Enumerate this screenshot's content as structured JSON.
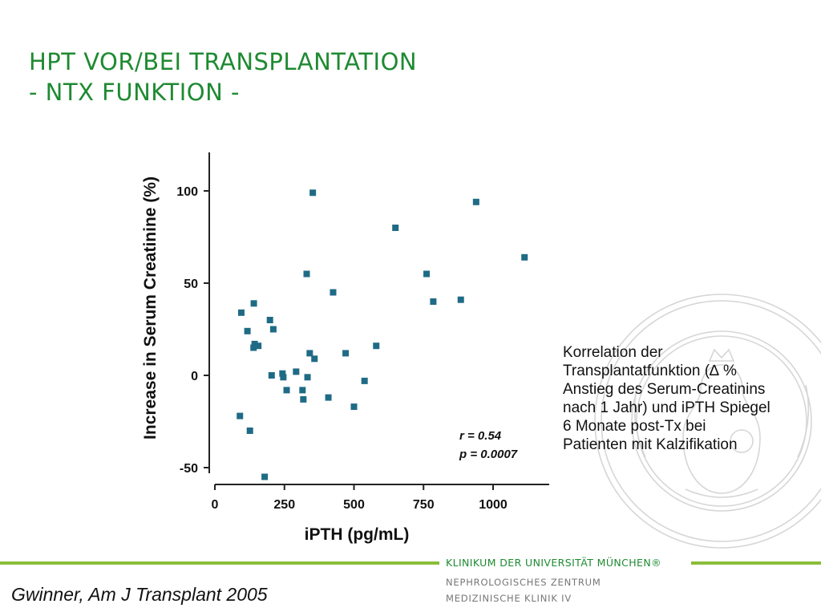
{
  "slide": {
    "title_lines": [
      "HPT VOR/BEI TRANSPLANTATION",
      "- NTX FUNKTION -"
    ],
    "caption_lines": [
      "Korrelation der",
      "Transplantatfunktion (∆ %",
      "Anstieg des Serum-Creatinins",
      "nach 1 Jahr) und iPTH Spiegel",
      "6 Monate post-Tx bei",
      "Patienten mit Kalzifikation"
    ],
    "citation": "Gwinner, Am J Transplant 2005",
    "clinic_name": "KLINIKUM DER UNIVERSITÄT MÜNCHEN®",
    "clinic_sub_lines": [
      "NEPHROLOGISCHES ZENTRUM",
      "MEDIZINISCHE KLINIK IV"
    ],
    "colors": {
      "title": "#1e8a32",
      "accent_rule": "#8bbd3a",
      "marker": "#1f6b86"
    }
  },
  "chart_data": {
    "type": "scatter",
    "title": "",
    "xlabel": "iPTH (pg/mL)",
    "ylabel": "Increase in Serum Creatinine (%)",
    "xlim": [
      -10,
      1210
    ],
    "ylim": [
      -62,
      120
    ],
    "xticks": [
      0,
      250,
      500,
      750,
      1000
    ],
    "yticks": [
      -50,
      0,
      50,
      100
    ],
    "grid": false,
    "legend": "none",
    "annotations": [
      "r = 0.54",
      "p = 0.0007"
    ],
    "series": [
      {
        "points": [
          [
            352,
            99
          ],
          [
            939,
            94
          ],
          [
            649,
            80
          ],
          [
            1113,
            64
          ],
          [
            330,
            55
          ],
          [
            761,
            55
          ],
          [
            425,
            45
          ],
          [
            785,
            40
          ],
          [
            884,
            41
          ],
          [
            95,
            34
          ],
          [
            140,
            39
          ],
          [
            198,
            30
          ],
          [
            117,
            24
          ],
          [
            210,
            25
          ],
          [
            139,
            15
          ],
          [
            143,
            17
          ],
          [
            156,
            16
          ],
          [
            341,
            12
          ],
          [
            358,
            9
          ],
          [
            470,
            12
          ],
          [
            580,
            16
          ],
          [
            204,
            0
          ],
          [
            243,
            1
          ],
          [
            246,
            -1
          ],
          [
            292,
            2
          ],
          [
            333,
            -1
          ],
          [
            258,
            -8
          ],
          [
            315,
            -8
          ],
          [
            318,
            -13
          ],
          [
            408,
            -12
          ],
          [
            538,
            -3
          ],
          [
            500,
            -17
          ],
          [
            90,
            -22
          ],
          [
            126,
            -30
          ],
          [
            179,
            -55
          ]
        ]
      }
    ]
  }
}
